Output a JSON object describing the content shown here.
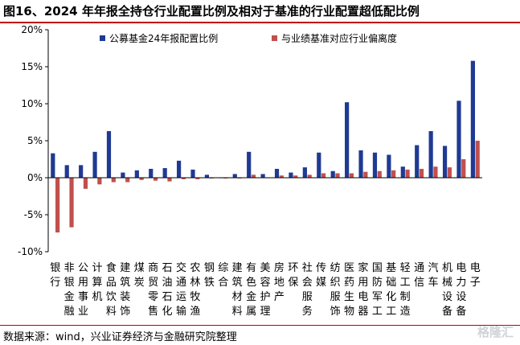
{
  "header": {
    "title": "图16、2024 年年报全持仓行业配置比例及相对于基准的行业配置超低配比例"
  },
  "footer": {
    "source": "数据来源：wind，兴业证券经济与金融研究院整理",
    "watermark": "格隆汇"
  },
  "colors": {
    "series1": "#1f3a93",
    "series2": "#c0504d",
    "accent": "#c00000"
  },
  "chart_data": {
    "type": "bar",
    "ylim": [
      -10,
      20
    ],
    "yticks": [
      -10,
      -5,
      0,
      5,
      10,
      15,
      20
    ],
    "ytick_labels": [
      "-10%",
      "-5%",
      "0%",
      "5%",
      "10%",
      "15%",
      "20%"
    ],
    "legend_position": "top",
    "categories": [
      "银行",
      "非银金融",
      "公用事业",
      "计算机",
      "食品饮料",
      "建筑装饰",
      "煤炭",
      "商贸零售",
      "石油石化",
      "交通运输",
      "农林牧渔",
      "钢铁",
      "综合",
      "建筑材料",
      "有色金属",
      "美容护理",
      "房地产",
      "环保",
      "社会服务",
      "传媒",
      "纺织服饰",
      "医药生物",
      "家用电器",
      "国防军工",
      "基础化工",
      "轻工制造",
      "通信",
      "汽车",
      "机械设备",
      "电力设备",
      "电子"
    ],
    "series": [
      {
        "name": "公募基金24年报配置比例",
        "values": [
          3.3,
          1.7,
          1.7,
          3.5,
          6.3,
          0.7,
          1.0,
          1.2,
          1.3,
          2.3,
          1.1,
          0.4,
          0.0,
          0.5,
          3.5,
          0.5,
          1.2,
          0.7,
          1.4,
          3.4,
          0.9,
          10.2,
          3.7,
          3.4,
          3.1,
          1.5,
          4.4,
          6.3,
          4.3,
          10.4,
          15.8
        ]
      },
      {
        "name": "与业绩基准对应行业偏离度",
        "values": [
          -7.4,
          -6.7,
          -1.5,
          -0.9,
          -0.6,
          -0.6,
          -0.3,
          -0.4,
          -0.5,
          -0.2,
          -0.2,
          -0.1,
          -0.1,
          -0.1,
          0.4,
          0.0,
          0.3,
          0.3,
          0.4,
          0.6,
          0.6,
          0.6,
          0.8,
          0.9,
          1.0,
          1.1,
          1.2,
          1.5,
          1.4,
          2.5,
          5.0
        ]
      }
    ]
  }
}
